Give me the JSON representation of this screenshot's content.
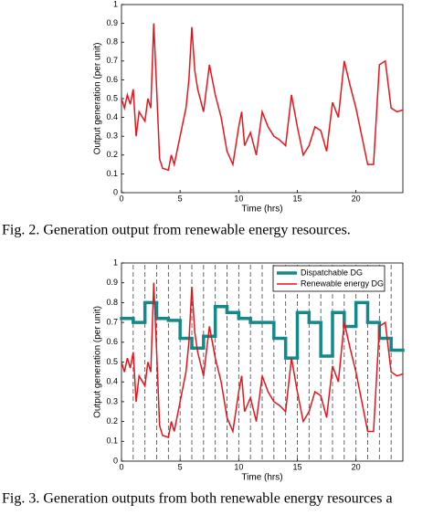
{
  "chart_data": [
    {
      "type": "line",
      "caption": "Fig. 2. Generation output from renewable energy resources.",
      "xlabel": "Time (hrs)",
      "ylabel": "Output generation (per unit)",
      "x": [
        0,
        0.25,
        0.5,
        0.75,
        1,
        1.25,
        1.5,
        2,
        2.25,
        2.5,
        2.75,
        3,
        3.25,
        3.5,
        4,
        4.25,
        4.5,
        5,
        5.5,
        5.75,
        6,
        6.25,
        6.5,
        7,
        7.5,
        8,
        8.5,
        9,
        9.5,
        10,
        10.25,
        10.5,
        11,
        11.5,
        12,
        12.5,
        13,
        13.5,
        14,
        14.5,
        15,
        15.5,
        16,
        16.5,
        17,
        17.5,
        18,
        18.5,
        19,
        19.5,
        20,
        20.5,
        21,
        21.5,
        22,
        22.5,
        23,
        23.5,
        24
      ],
      "values": [
        0.5,
        0.45,
        0.52,
        0.47,
        0.55,
        0.3,
        0.43,
        0.38,
        0.5,
        0.45,
        0.9,
        0.55,
        0.18,
        0.13,
        0.12,
        0.2,
        0.15,
        0.3,
        0.45,
        0.6,
        0.88,
        0.65,
        0.55,
        0.43,
        0.68,
        0.52,
        0.4,
        0.22,
        0.15,
        0.35,
        0.43,
        0.25,
        0.32,
        0.2,
        0.43,
        0.35,
        0.3,
        0.28,
        0.25,
        0.52,
        0.35,
        0.2,
        0.25,
        0.35,
        0.33,
        0.22,
        0.48,
        0.4,
        0.7,
        0.57,
        0.45,
        0.3,
        0.15,
        0.15,
        0.68,
        0.7,
        0.45,
        0.43,
        0.44
      ],
      "color": "#e8141c",
      "xlim": [
        0,
        24
      ],
      "ylim": [
        0,
        1
      ],
      "xticks": [
        0,
        5,
        10,
        15,
        20
      ],
      "yticks": [
        0,
        0.1,
        0.2,
        0.3,
        0.4,
        0.5,
        0.6,
        0.7,
        0.8,
        0.9,
        1
      ]
    },
    {
      "type": "line",
      "caption": "Fig. 3. Generation outputs from both renewable energy resources a",
      "xlabel": "Time (hrs)",
      "ylabel": "Output generation (per unit)",
      "legend": "upper right",
      "series": [
        {
          "name": "Dispatchable DG",
          "color": "#138a8a",
          "step": true,
          "x": [
            0,
            1,
            2,
            3,
            4,
            5,
            6,
            7,
            8,
            9,
            10,
            11,
            12,
            13,
            14,
            15,
            16,
            17,
            18,
            19,
            20,
            21,
            22,
            23
          ],
          "values": [
            0.72,
            0.7,
            0.8,
            0.72,
            0.71,
            0.62,
            0.57,
            0.63,
            0.78,
            0.75,
            0.72,
            0.7,
            0.7,
            0.62,
            0.52,
            0.75,
            0.7,
            0.53,
            0.75,
            0.68,
            0.8,
            0.7,
            0.62,
            0.56
          ]
        },
        {
          "name": "Renewable energy DG",
          "color": "#e8141c",
          "x": [
            0,
            0.25,
            0.5,
            0.75,
            1,
            1.25,
            1.5,
            2,
            2.25,
            2.5,
            2.75,
            3,
            3.25,
            3.5,
            4,
            4.25,
            4.5,
            5,
            5.5,
            5.75,
            6,
            6.25,
            6.5,
            7,
            7.5,
            8,
            8.5,
            9,
            9.5,
            10,
            10.25,
            10.5,
            11,
            11.5,
            12,
            12.5,
            13,
            13.5,
            14,
            14.5,
            15,
            15.5,
            16,
            16.5,
            17,
            17.5,
            18,
            18.5,
            19,
            19.5,
            20,
            20.5,
            21,
            21.5,
            22,
            22.5,
            23,
            23.5,
            24
          ],
          "values": [
            0.5,
            0.45,
            0.52,
            0.47,
            0.55,
            0.3,
            0.43,
            0.38,
            0.5,
            0.45,
            0.9,
            0.55,
            0.18,
            0.13,
            0.12,
            0.2,
            0.15,
            0.3,
            0.45,
            0.6,
            0.88,
            0.65,
            0.55,
            0.43,
            0.68,
            0.52,
            0.4,
            0.22,
            0.15,
            0.35,
            0.43,
            0.25,
            0.32,
            0.2,
            0.43,
            0.35,
            0.3,
            0.28,
            0.25,
            0.52,
            0.35,
            0.2,
            0.25,
            0.35,
            0.33,
            0.22,
            0.48,
            0.4,
            0.7,
            0.57,
            0.45,
            0.3,
            0.15,
            0.15,
            0.68,
            0.7,
            0.45,
            0.43,
            0.44
          ]
        }
      ],
      "xlim": [
        0,
        24
      ],
      "ylim": [
        0,
        1
      ],
      "xticks": [
        0,
        5,
        10,
        15,
        20
      ],
      "yticks": [
        0,
        0.1,
        0.2,
        0.3,
        0.4,
        0.5,
        0.6,
        0.7,
        0.8,
        0.9,
        1
      ]
    }
  ]
}
